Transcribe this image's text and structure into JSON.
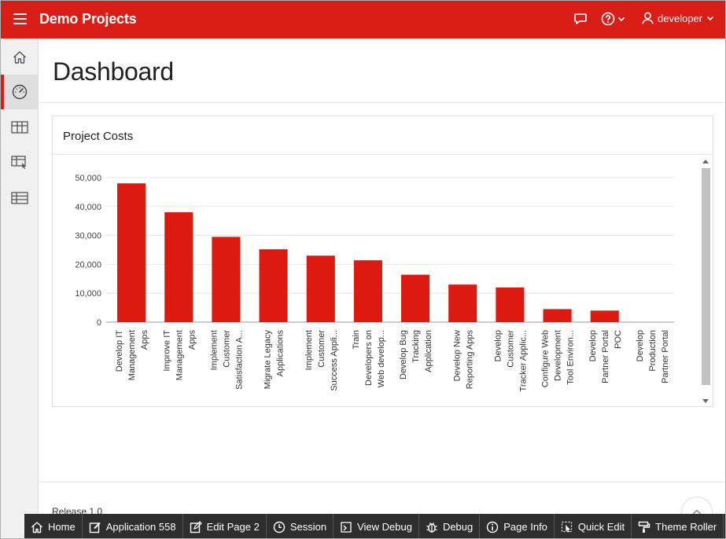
{
  "header": {
    "app_title": "Demo Projects",
    "user_name": "developer"
  },
  "page": {
    "title": "Dashboard"
  },
  "region": {
    "title": "Project Costs"
  },
  "chart_data": {
    "type": "bar",
    "color": "#dc1a10",
    "ylim": [
      0,
      50000
    ],
    "y_ticks": [
      0,
      10000,
      20000,
      30000,
      40000,
      50000
    ],
    "y_tick_labels": [
      "0",
      "10,000",
      "20,000",
      "30,000",
      "40,000",
      "50,000"
    ],
    "grid": true,
    "categories": [
      [
        "Develop IT",
        "Management",
        "Apps"
      ],
      [
        "Improve IT",
        "Management",
        "Apps"
      ],
      [
        "Implement",
        "Customer",
        "Satisfaction A..."
      ],
      [
        "Migrate Legacy",
        "Applications"
      ],
      [
        "Implement",
        "Customer",
        "Success Appli..."
      ],
      [
        "Train",
        "Developers on",
        "Web develop..."
      ],
      [
        "Develop Bug",
        "Tracking",
        "Application"
      ],
      [
        "Develop New",
        "Reporting Apps"
      ],
      [
        "Develop",
        "Customer",
        "Tracker Applic..."
      ],
      [
        "Configure Web",
        "Development",
        "Tool Environ..."
      ],
      [
        "Develop",
        "Partner Portal",
        "POC"
      ],
      [
        "Develop",
        "Production",
        "Partner Portal"
      ]
    ],
    "values": [
      48000,
      38000,
      29500,
      25200,
      23000,
      21400,
      16400,
      13000,
      12000,
      4500,
      4000,
      0
    ]
  },
  "footer": {
    "release": "Release 1.0"
  },
  "dev_toolbar": {
    "home": "Home",
    "application": "Application 558",
    "edit_page": "Edit Page 2",
    "session": "Session",
    "view_debug": "View Debug",
    "debug": "Debug",
    "page_info": "Page Info",
    "quick_edit": "Quick Edit",
    "theme_roller": "Theme Roller"
  }
}
